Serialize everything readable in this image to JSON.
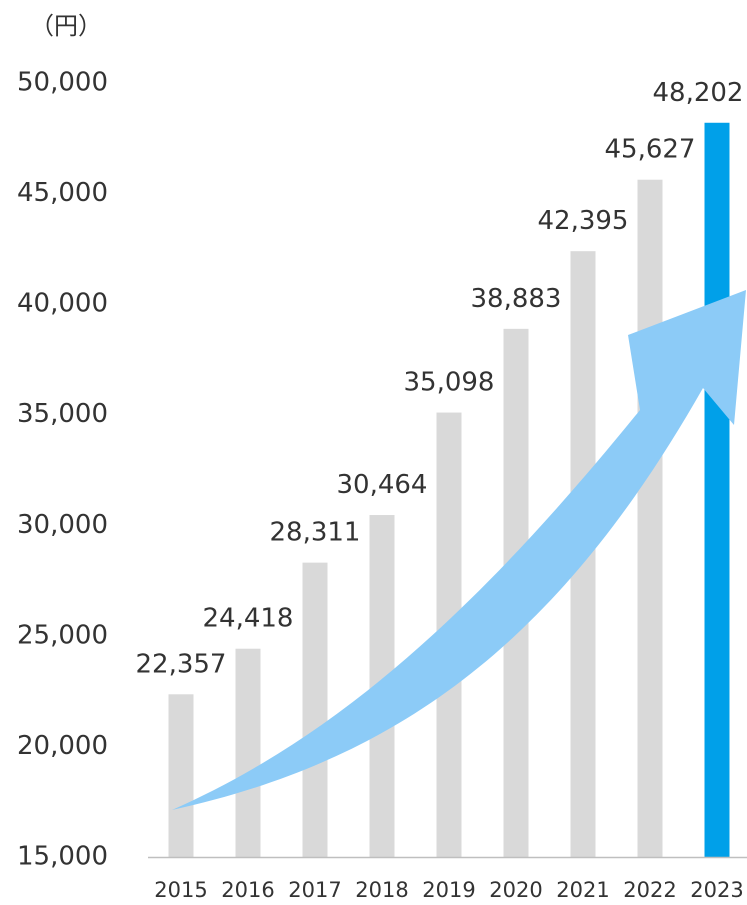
{
  "chart_data": {
    "type": "bar",
    "unit_label": "（円）",
    "categories": [
      "2015",
      "2016",
      "2017",
      "2018",
      "2019",
      "2020",
      "2021",
      "2022",
      "2023"
    ],
    "values": [
      22357,
      24418,
      28311,
      30464,
      35098,
      38883,
      42395,
      45627,
      48202
    ],
    "value_labels": [
      "22,357",
      "24,418",
      "28,311",
      "30,464",
      "35,098",
      "38,883",
      "42,395",
      "45,627",
      "48,202"
    ],
    "ylim": [
      15000,
      50000
    ],
    "yticks": [
      15000,
      20000,
      25000,
      30000,
      35000,
      40000,
      45000,
      50000
    ],
    "ytick_labels": [
      "15,000",
      "20,000",
      "25,000",
      "30,000",
      "35,000",
      "40,000",
      "45,000",
      "50,000"
    ],
    "grid": false,
    "colors": {
      "bar": "#d9d9d9",
      "highlight_bar": "#00a0e9",
      "arrow": "#8ccbf7",
      "axis": "#bfbfbf"
    },
    "highlight_category": "2023",
    "decoration": "rising-arrow"
  }
}
